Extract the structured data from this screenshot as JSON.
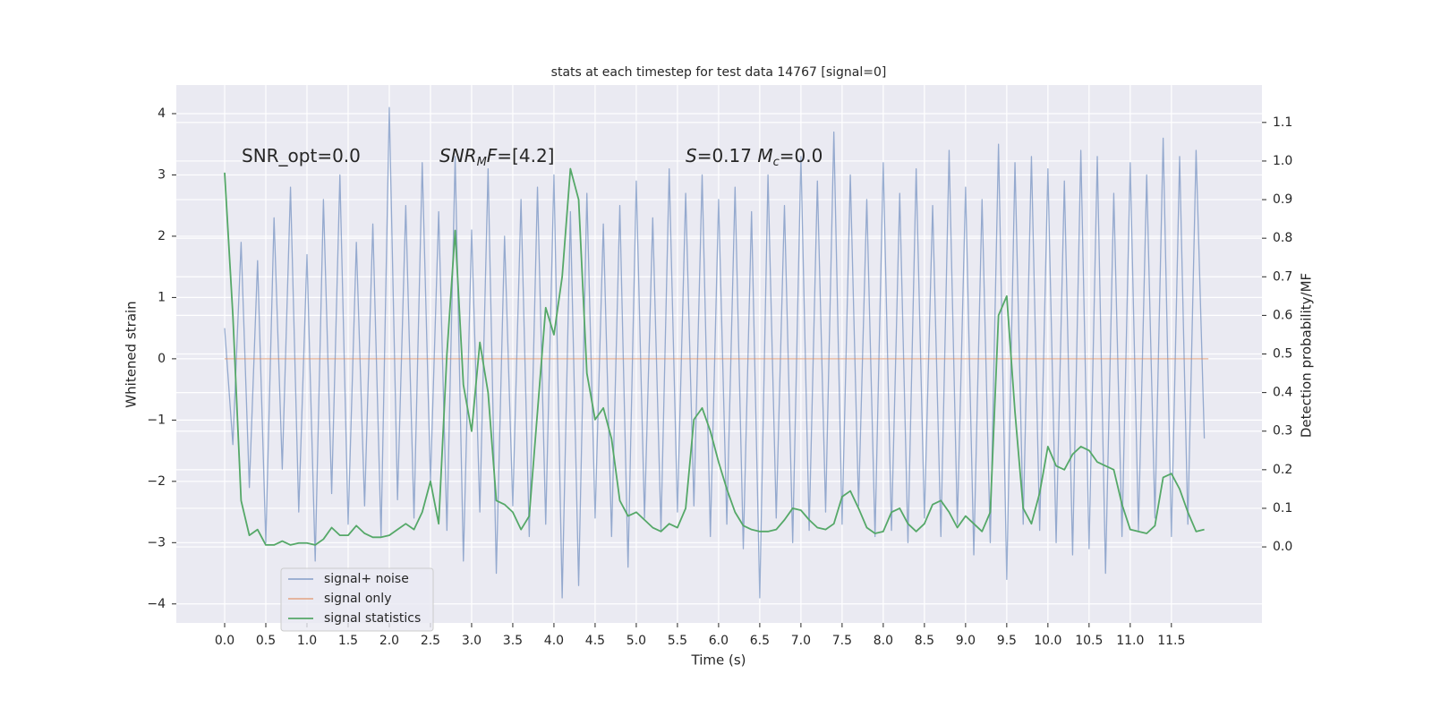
{
  "chart_data": {
    "type": "line",
    "title": "stats at each timestep for test data 14767 [signal=0]",
    "xlabel": "Time (s)",
    "ylabel": "Whitened strain",
    "y2label": "Detection probability/MF",
    "annotations": [
      [
        {
          "text": "SNR_opt=0.0"
        }
      ],
      [
        {
          "text": "SNR",
          "style": "italic"
        },
        {
          "text": "M",
          "style": "sub"
        },
        {
          "text": "F",
          "style": "italic"
        },
        {
          "text": "=[4.2]"
        }
      ],
      [
        {
          "text": "S",
          "style": "italic"
        },
        {
          "text": "=0.17   "
        },
        {
          "text": "M",
          "style": "italic"
        },
        {
          "text": "c",
          "style": "sub"
        },
        {
          "text": "=0.0"
        }
      ]
    ],
    "x": [
      0.0,
      0.1,
      0.2,
      0.3,
      0.4,
      0.5,
      0.6,
      0.7,
      0.8,
      0.9,
      1.0,
      1.1,
      1.2,
      1.3,
      1.4,
      1.5,
      1.6,
      1.7,
      1.8,
      1.9,
      2.0,
      2.1,
      2.2,
      2.3,
      2.4,
      2.5,
      2.6,
      2.7,
      2.8,
      2.9,
      3.0,
      3.1,
      3.2,
      3.3,
      3.4,
      3.5,
      3.6,
      3.7,
      3.8,
      3.9,
      4.0,
      4.1,
      4.2,
      4.3,
      4.4,
      4.5,
      4.6,
      4.7,
      4.8,
      4.9,
      5.0,
      5.1,
      5.2,
      5.3,
      5.4,
      5.5,
      5.6,
      5.7,
      5.8,
      5.9,
      6.0,
      6.1,
      6.2,
      6.3,
      6.4,
      6.5,
      6.6,
      6.7,
      6.8,
      6.9,
      7.0,
      7.1,
      7.2,
      7.3,
      7.4,
      7.5,
      7.6,
      7.7,
      7.8,
      7.9,
      8.0,
      8.1,
      8.2,
      8.3,
      8.4,
      8.5,
      8.6,
      8.7,
      8.8,
      8.9,
      9.0,
      9.1,
      9.2,
      9.3,
      9.4,
      9.5,
      9.6,
      9.7,
      9.8,
      9.9,
      10.0,
      10.1,
      10.2,
      10.3,
      10.4,
      10.5,
      10.6,
      10.7,
      10.8,
      10.9,
      11.0,
      11.1,
      11.2,
      11.3,
      11.4,
      11.5,
      11.6,
      11.7,
      11.8,
      11.9
    ],
    "series": [
      {
        "name": "signal+ noise",
        "color": "#4c72b0",
        "opacity": 0.55,
        "values": [
          0.5,
          -1.4,
          1.9,
          -2.1,
          1.6,
          -3.0,
          2.3,
          -1.8,
          2.8,
          -2.5,
          1.7,
          -3.3,
          2.6,
          -2.2,
          3.0,
          -2.7,
          1.9,
          -2.4,
          2.2,
          -2.9,
          4.1,
          -2.3,
          2.5,
          -2.6,
          3.2,
          -2.0,
          2.4,
          -2.8,
          3.3,
          -3.3,
          2.1,
          -2.5,
          3.1,
          -3.5,
          2.0,
          -2.4,
          2.6,
          -2.9,
          2.8,
          -2.7,
          3.0,
          -3.9,
          2.4,
          -3.7,
          2.7,
          -2.6,
          2.2,
          -2.9,
          2.5,
          -3.4,
          2.9,
          -2.6,
          2.3,
          -2.8,
          3.1,
          -2.5,
          2.7,
          -2.4,
          3.0,
          -2.9,
          2.6,
          -2.7,
          2.8,
          -3.1,
          2.4,
          -3.9,
          3.0,
          -2.6,
          2.5,
          -3.0,
          3.3,
          -2.8,
          2.9,
          -2.5,
          3.7,
          -2.7,
          3.0,
          -2.4,
          2.6,
          -2.9,
          3.2,
          -2.8,
          2.7,
          -3.0,
          3.1,
          -2.6,
          2.5,
          -2.9,
          3.4,
          -2.7,
          2.8,
          -3.2,
          2.6,
          -3.0,
          3.5,
          -3.6,
          3.2,
          -2.7,
          3.3,
          -2.8,
          3.1,
          -3.0,
          2.9,
          -3.2,
          3.4,
          -3.1,
          3.3,
          -3.5,
          2.7,
          -2.9,
          3.2,
          -2.8,
          3.0,
          -2.6,
          3.6,
          -2.9,
          3.3,
          -2.7,
          3.4,
          -1.3
        ]
      },
      {
        "name": "signal only",
        "color": "#dd8452",
        "opacity": 0.6,
        "x": [
          0.0,
          11.95
        ],
        "values": [
          0,
          0
        ]
      },
      {
        "name": "signal statistics",
        "color": "#55a868",
        "opacity": 1,
        "axis": "y2",
        "values": [
          0.97,
          0.6,
          0.12,
          0.03,
          0.045,
          0.005,
          0.005,
          0.015,
          0.005,
          0.01,
          0.01,
          0.005,
          0.02,
          0.05,
          0.03,
          0.03,
          0.055,
          0.035,
          0.025,
          0.025,
          0.03,
          0.045,
          0.06,
          0.045,
          0.09,
          0.17,
          0.06,
          0.5,
          0.82,
          0.42,
          0.3,
          0.53,
          0.4,
          0.12,
          0.11,
          0.09,
          0.045,
          0.08,
          0.35,
          0.62,
          0.55,
          0.7,
          0.98,
          0.9,
          0.45,
          0.33,
          0.36,
          0.28,
          0.12,
          0.08,
          0.09,
          0.07,
          0.05,
          0.04,
          0.06,
          0.05,
          0.1,
          0.33,
          0.36,
          0.3,
          0.22,
          0.15,
          0.09,
          0.055,
          0.045,
          0.04,
          0.04,
          0.045,
          0.07,
          0.1,
          0.095,
          0.07,
          0.05,
          0.045,
          0.06,
          0.13,
          0.145,
          0.1,
          0.05,
          0.035,
          0.04,
          0.09,
          0.1,
          0.06,
          0.04,
          0.06,
          0.11,
          0.12,
          0.09,
          0.05,
          0.08,
          0.06,
          0.04,
          0.09,
          0.6,
          0.65,
          0.35,
          0.1,
          0.06,
          0.14,
          0.26,
          0.21,
          0.2,
          0.24,
          0.26,
          0.25,
          0.22,
          0.21,
          0.2,
          0.11,
          0.045,
          0.04,
          0.035,
          0.055,
          0.18,
          0.19,
          0.15,
          0.09,
          0.04,
          0.045
        ]
      }
    ],
    "xlim": [
      -0.587,
      12.6
    ],
    "ylim": [
      -4.31,
      4.467
    ],
    "y2lim": [
      -0.197,
      1.197
    ],
    "xticks": [
      {
        "value": 0,
        "label": "0.0"
      },
      {
        "value": 0.5,
        "label": "0.5"
      },
      {
        "value": 1,
        "label": "1.0"
      },
      {
        "value": 1.5,
        "label": "1.5"
      },
      {
        "value": 2,
        "label": "2.0"
      },
      {
        "value": 2.5,
        "label": "2.5"
      },
      {
        "value": 3,
        "label": "3.0"
      },
      {
        "value": 3.5,
        "label": "3.5"
      },
      {
        "value": 4,
        "label": "4.0"
      },
      {
        "value": 4.5,
        "label": "4.5"
      },
      {
        "value": 5,
        "label": "5.0"
      },
      {
        "value": 5.5,
        "label": "5.5"
      },
      {
        "value": 6,
        "label": "6.0"
      },
      {
        "value": 6.5,
        "label": "6.5"
      },
      {
        "value": 7,
        "label": "7.0"
      },
      {
        "value": 7.5,
        "label": "7.5"
      },
      {
        "value": 8,
        "label": "8.0"
      },
      {
        "value": 8.5,
        "label": "8.5"
      },
      {
        "value": 9,
        "label": "9.0"
      },
      {
        "value": 9.5,
        "label": "9.5"
      },
      {
        "value": 10,
        "label": "10.0"
      },
      {
        "value": 10.5,
        "label": "10.5"
      },
      {
        "value": 11,
        "label": "11.0"
      },
      {
        "value": 11.5,
        "label": "11.5"
      }
    ],
    "yticks": [
      {
        "value": -4,
        "label": "−4"
      },
      {
        "value": -3,
        "label": "−3"
      },
      {
        "value": -2,
        "label": "−2"
      },
      {
        "value": -1,
        "label": "−1"
      },
      0,
      1,
      2,
      3,
      4
    ],
    "y2ticks": [
      {
        "value": 0,
        "label": "0.0"
      },
      {
        "value": 0.1,
        "label": "0.1"
      },
      {
        "value": 0.2,
        "label": "0.2"
      },
      {
        "value": 0.3,
        "label": "0.3"
      },
      {
        "value": 0.4,
        "label": "0.4"
      },
      {
        "value": 0.5,
        "label": "0.5"
      },
      {
        "value": 0.6,
        "label": "0.6"
      },
      {
        "value": 0.7,
        "label": "0.7"
      },
      {
        "value": 0.8,
        "label": "0.8"
      },
      {
        "value": 0.9,
        "label": "0.9"
      },
      {
        "value": 1,
        "label": "1.0"
      },
      {
        "value": 1.1,
        "label": "1.1"
      }
    ],
    "grid": true,
    "background": "#eaeaf2",
    "legend": "lower left"
  }
}
